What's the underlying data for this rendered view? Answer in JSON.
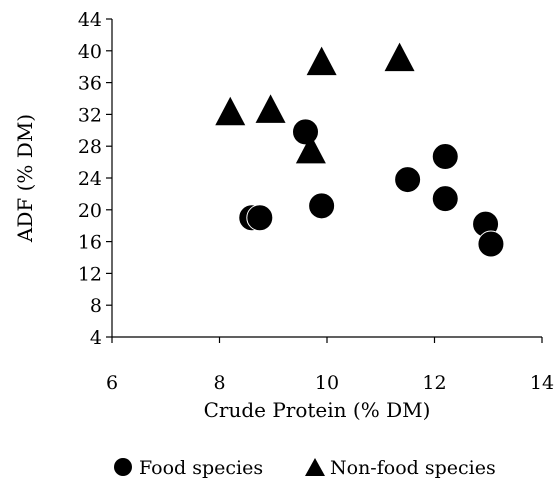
{
  "chart_data": {
    "type": "scatter",
    "xlabel": "Crude Protein (% DM)",
    "ylabel": "ADF (% DM)",
    "xlim": [
      6,
      14
    ],
    "ylim": [
      4,
      44
    ],
    "x_ticks": [
      6,
      8,
      10,
      12,
      14
    ],
    "y_ticks": [
      4,
      8,
      12,
      16,
      20,
      24,
      28,
      32,
      36,
      40,
      44
    ],
    "grid": false,
    "legend_position": "bottom",
    "series": [
      {
        "name": "Food species",
        "marker": "circle",
        "color": "#000000",
        "points": [
          {
            "x": 8.6,
            "y": 19.0
          },
          {
            "x": 8.75,
            "y": 19.0
          },
          {
            "x": 9.6,
            "y": 29.8
          },
          {
            "x": 9.9,
            "y": 20.5
          },
          {
            "x": 11.5,
            "y": 23.8
          },
          {
            "x": 12.2,
            "y": 26.7
          },
          {
            "x": 12.2,
            "y": 21.4
          },
          {
            "x": 12.95,
            "y": 18.2
          },
          {
            "x": 13.05,
            "y": 15.7
          }
        ]
      },
      {
        "name": "Non-food species",
        "marker": "triangle",
        "color": "#000000",
        "points": [
          {
            "x": 8.2,
            "y": 32.0
          },
          {
            "x": 8.95,
            "y": 32.3
          },
          {
            "x": 9.7,
            "y": 27.2
          },
          {
            "x": 9.9,
            "y": 38.3
          },
          {
            "x": 11.35,
            "y": 38.8
          }
        ]
      }
    ]
  }
}
